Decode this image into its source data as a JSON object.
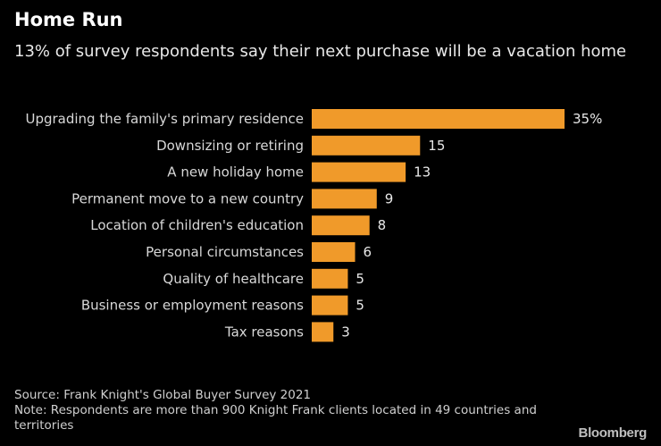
{
  "chart_data": {
    "type": "bar",
    "orientation": "horizontal",
    "title": "Home Run",
    "subtitle": "13% of survey respondents say their next purchase will be a vacation home",
    "categories": [
      "Upgrading the family's primary residence",
      "Downsizing or retiring",
      "A new holiday home",
      "Permanent move to a new country",
      "Location of children's education",
      "Personal circumstances",
      "Quality of healthcare",
      "Business or employment reasons",
      "Tax reasons"
    ],
    "values": [
      35,
      15,
      13,
      9,
      8,
      6,
      5,
      5,
      3
    ],
    "value_labels": [
      "35%",
      "15",
      "13",
      "9",
      "8",
      "6",
      "5",
      "5",
      "3"
    ],
    "bar_color": "#f09a2a",
    "xlim": [
      0,
      35
    ],
    "grid": false,
    "xlabel": "",
    "ylabel": ""
  },
  "footer": {
    "source": "Source: Frank Knight's Global Buyer Survey 2021",
    "note": "Note: Respondents are more than 900 Knight Frank clients located in 49 countries and territories"
  },
  "brand": "Bloomberg"
}
